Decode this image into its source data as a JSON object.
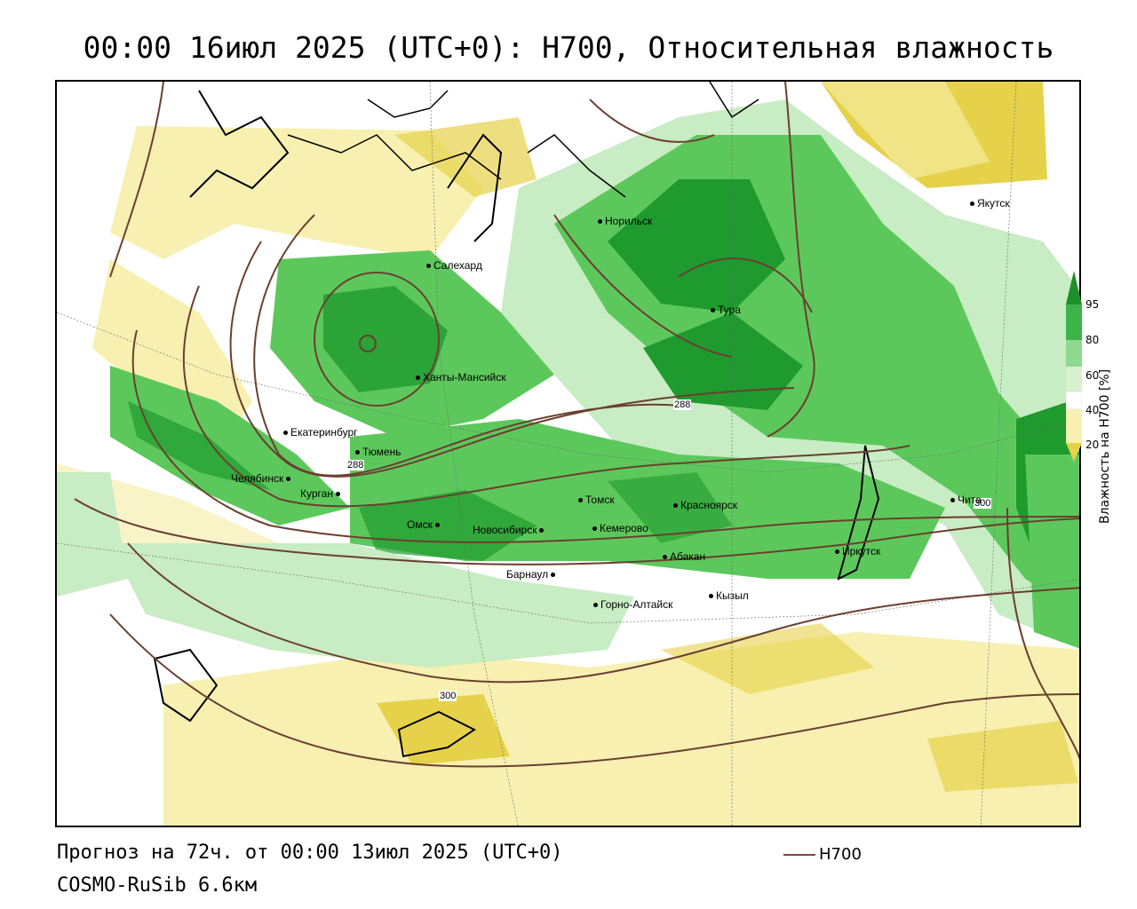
{
  "title": "00:00 16июл 2025 (UTC+0): H700, Относительная влажность",
  "forecast_line": "Прогноз на 72ч. от 00:00 13июл 2025 (UTC+0)",
  "model_line": "COSMO-RuSib 6.6км",
  "legend": {
    "label": "H700",
    "line_color": "#7a4a3a"
  },
  "colorbar": {
    "title": "Влажность на H700 [%]",
    "ticks": [
      "95",
      "80",
      "60",
      "40",
      "20"
    ],
    "colors": [
      "#1f8f2a",
      "#3cb44a",
      "#8fd88f",
      "#d6f0d0",
      "#ffffff",
      "#f7f0b0",
      "#e6d24a"
    ]
  },
  "colors": {
    "dry_strong": "#e6d24a",
    "dry_light": "#f7f0b0",
    "moist_light": "#c8ecc4",
    "moist": "#5cc85c",
    "moist_strong": "#1f9a2e",
    "contour": "#6b3f30"
  },
  "cities": [
    {
      "name": "Норильск"
    },
    {
      "name": "Якутск"
    },
    {
      "name": "Салехард"
    },
    {
      "name": "Тура"
    },
    {
      "name": "Ханты-Мансийск"
    },
    {
      "name": "Екатеринбург"
    },
    {
      "name": "Тюмень"
    },
    {
      "name": "Челябинск"
    },
    {
      "name": "Курган"
    },
    {
      "name": "Томск"
    },
    {
      "name": "Красноярск"
    },
    {
      "name": "Чита"
    },
    {
      "name": "Омск"
    },
    {
      "name": "Новосибирск"
    },
    {
      "name": "Кемерово"
    },
    {
      "name": "Иркутск"
    },
    {
      "name": "Абакан"
    },
    {
      "name": "Барнаул"
    },
    {
      "name": "Кызыл"
    },
    {
      "name": "Горно-Алтайск"
    }
  ],
  "contour_labels": [
    "288",
    "288",
    "300",
    "300"
  ]
}
